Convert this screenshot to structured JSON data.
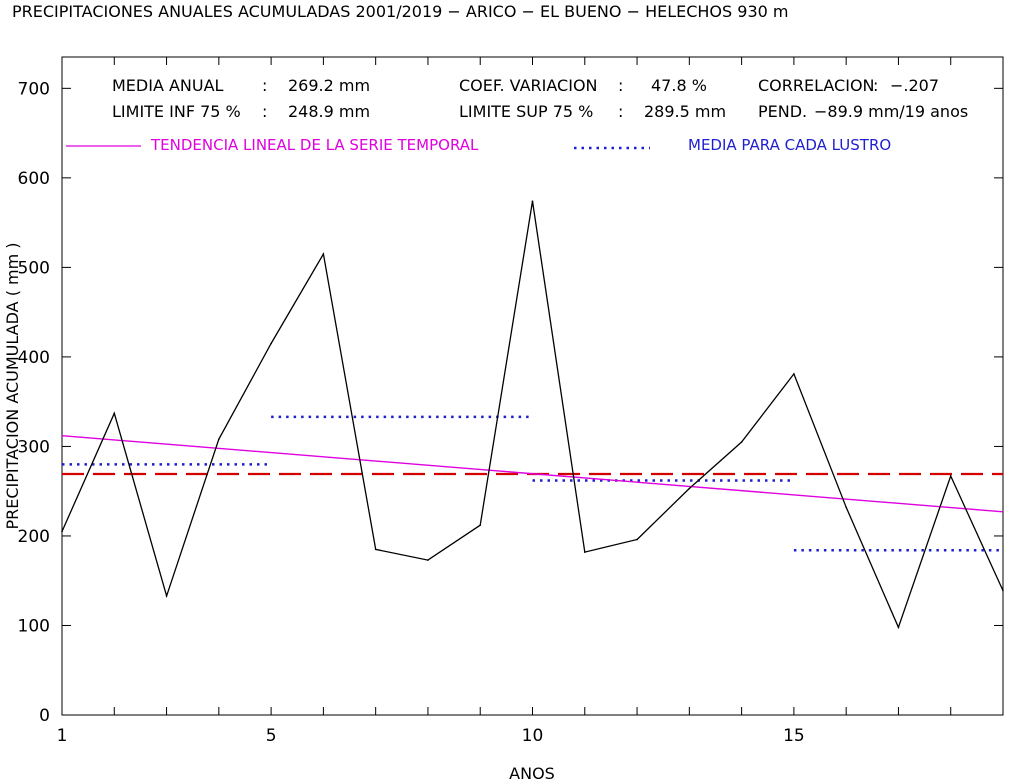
{
  "chart_data": {
    "type": "line",
    "title": "PRECIPITACIONES ANUALES ACUMULADAS 2001/2019 − ARICO − EL BUENO − HELECHOS  930 m",
    "xlabel": "ANOS",
    "ylabel": "PRECIPITACION ACUMULADA ( mm )",
    "xlim": [
      1,
      19
    ],
    "ylim": [
      0,
      735
    ],
    "x_ticks": [
      1,
      5,
      10,
      15
    ],
    "y_ticks": [
      0,
      100,
      200,
      300,
      400,
      500,
      600,
      700
    ],
    "grid": false,
    "series": [
      {
        "name": "",
        "color": "#000000",
        "x": [
          1,
          2,
          3,
          4,
          5,
          6,
          7,
          8,
          9,
          10,
          11,
          12,
          13,
          14,
          15,
          16,
          17,
          18,
          19
        ],
        "values": [
          205,
          337,
          133,
          308,
          415,
          515,
          185,
          173,
          212,
          574,
          182,
          196,
          253,
          305,
          381,
          232,
          98,
          267,
          139
        ]
      }
    ],
    "reference_lines": {
      "mean": {
        "value": 269.2,
        "color": "#d40000",
        "style": "dashed",
        "x": [
          1,
          19
        ]
      },
      "trend": {
        "label": "TENDENCIA LINEAL DE LA SERIE TEMPORAL",
        "color": "#e000e0",
        "x": [
          1,
          19
        ],
        "values": [
          312,
          227
        ]
      },
      "lustros": {
        "label": "MEDIA PARA CADA LUSTRO",
        "color": "#1f1fd0",
        "style": "dotted",
        "segments": [
          {
            "x": [
              1,
              5
            ],
            "value": 280
          },
          {
            "x": [
              5,
              10
            ],
            "value": 333
          },
          {
            "x": [
              10,
              15
            ],
            "value": 262
          },
          {
            "x": [
              15,
              19
            ],
            "value": 184
          }
        ]
      }
    },
    "stats": [
      {
        "label": "MEDIA ANUAL",
        "sep": ":",
        "value": "269.2 mm"
      },
      {
        "label": "LIMITE INF 75 %",
        "sep": ":",
        "value": "248.9 mm"
      },
      {
        "label": "COEF. VARIACION",
        "sep": ":",
        "value": "47.8 %"
      },
      {
        "label": "LIMITE SUP 75 %",
        "sep": ":",
        "value": "289.5 mm"
      },
      {
        "label": "CORRELACION",
        "sep": ":",
        "value": "−.207"
      },
      {
        "label": "PEND.",
        "sep": "",
        "value": "−89.9 mm/19 anos"
      }
    ]
  }
}
